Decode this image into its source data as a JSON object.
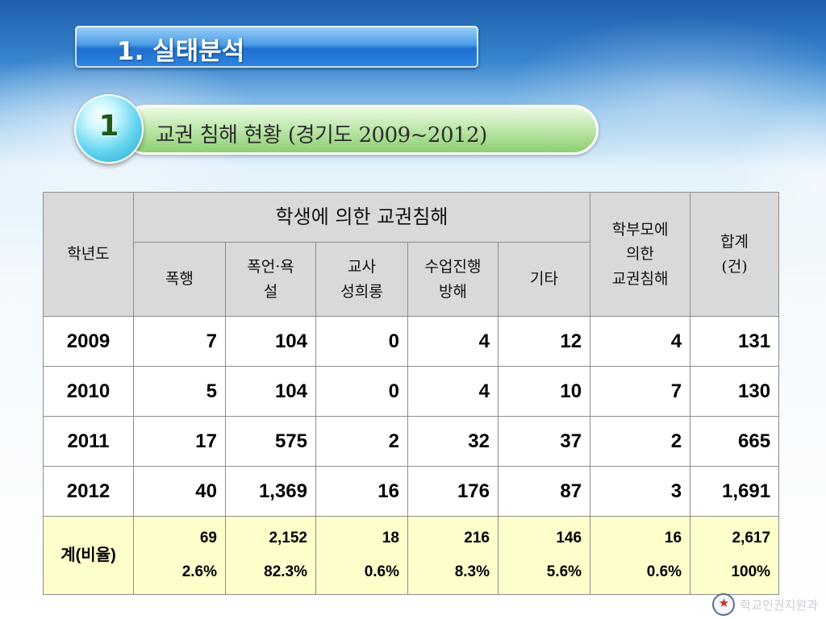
{
  "title": "1. 실태분석",
  "section": {
    "number": "1",
    "title": "교권 침해 현황 (경기도 2009~2012)"
  },
  "table": {
    "headers": {
      "year": "학년도",
      "student_group": "학생에 의한 교권침해",
      "parent": [
        "학부모에",
        "의한",
        "교권침해"
      ],
      "total": [
        "합계",
        "(건)"
      ],
      "sub": [
        [
          "폭행"
        ],
        [
          "폭언·욕",
          "설"
        ],
        [
          "교사",
          "성희롱"
        ],
        [
          "수업진행",
          "방해"
        ],
        [
          "기타"
        ]
      ]
    },
    "rows": [
      {
        "year": "2009",
        "values": [
          "7",
          "104",
          "0",
          "4",
          "12",
          "4",
          "131"
        ]
      },
      {
        "year": "2010",
        "values": [
          "5",
          "104",
          "0",
          "4",
          "10",
          "7",
          "130"
        ]
      },
      {
        "year": "2011",
        "values": [
          "17",
          "575",
          "2",
          "32",
          "37",
          "2",
          "665"
        ]
      },
      {
        "year": "2012",
        "values": [
          "40",
          "1,369",
          "16",
          "176",
          "87",
          "3",
          "1,691"
        ]
      }
    ],
    "total_row": {
      "label": "계(비율)",
      "counts": [
        "69",
        "2,152",
        "18",
        "216",
        "146",
        "16",
        "2,617"
      ],
      "ratios": [
        "2.6%",
        "82.3%",
        "0.6%",
        "8.3%",
        "5.6%",
        "0.6%",
        "100%"
      ]
    }
  },
  "footer": {
    "org": "학교인권지원과",
    "emblem_icon": "emblem-icon"
  }
}
